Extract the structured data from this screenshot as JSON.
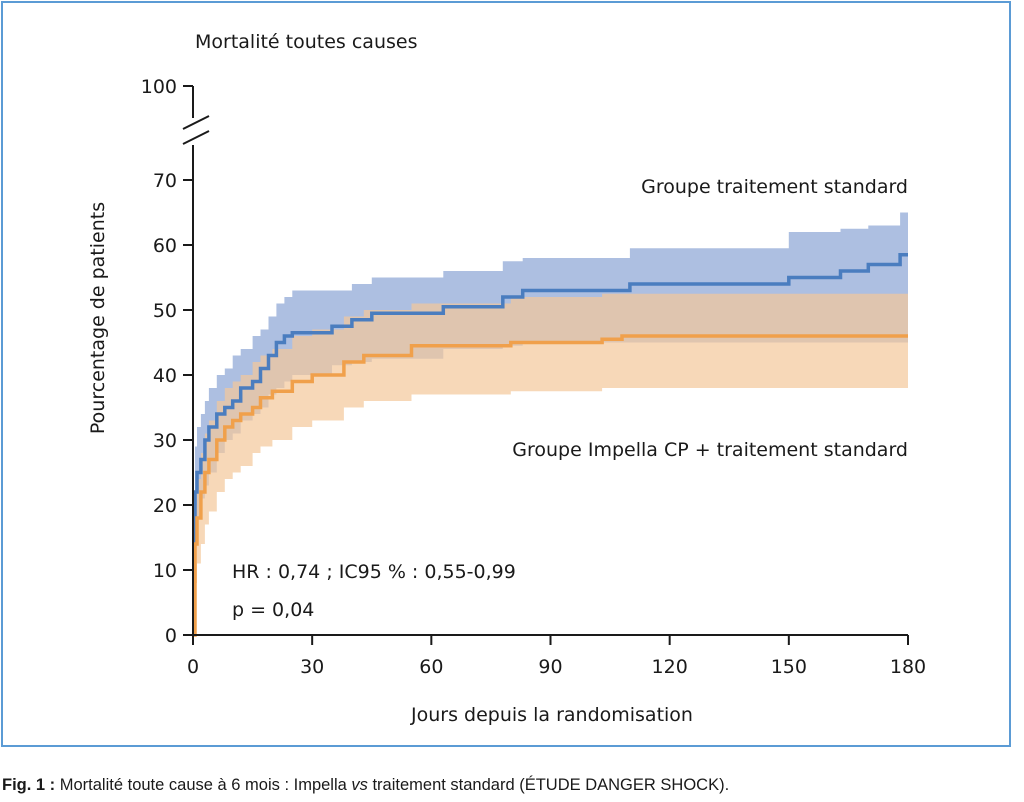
{
  "chart_data": {
    "type": "line",
    "subtype": "kaplan-meier step curves with confidence bands",
    "title": "Mortalité toutes causes",
    "xlabel": "Jours depuis la randomisation",
    "ylabel": "Pourcentage de patients",
    "xlim": [
      0,
      180
    ],
    "ylim": [
      0,
      70
    ],
    "y_break": {
      "from": 70,
      "to": 100
    },
    "x_ticks": [
      0,
      30,
      60,
      90,
      120,
      150,
      180
    ],
    "y_ticks": [
      0,
      10,
      20,
      30,
      40,
      50,
      60,
      70,
      100
    ],
    "x_tick_labels": [
      "0",
      "30",
      "60",
      "90",
      "120",
      "150",
      "180"
    ],
    "y_tick_labels": [
      "0",
      "10",
      "20",
      "30",
      "40",
      "50",
      "60",
      "70",
      "100"
    ],
    "grid": false,
    "series": [
      {
        "name": "Groupe traitement standard",
        "color": "#4a7dbf",
        "band_color": "#9fb4dc",
        "x": [
          0,
          0.5,
          1,
          2,
          3,
          4,
          6,
          8,
          10,
          12,
          15,
          17,
          19,
          21,
          23,
          25,
          35,
          40,
          45,
          63,
          78,
          83,
          110,
          150,
          163,
          170,
          178,
          180
        ],
        "y": [
          14,
          22,
          25,
          27,
          30,
          32,
          34,
          35,
          36,
          38,
          39,
          41,
          43,
          45,
          46,
          46.5,
          47.5,
          48.5,
          49.5,
          50.5,
          52,
          53,
          54,
          55,
          56,
          57,
          58.5,
          58.5
        ],
        "lower": [
          0,
          14,
          18,
          21,
          23,
          25,
          28,
          30,
          31,
          33,
          34,
          35,
          37,
          38,
          39,
          40,
          41.5,
          42,
          42.5,
          44,
          44.5,
          45,
          45,
          45,
          45,
          45,
          45,
          45
        ],
        "upper": [
          22,
          29,
          32,
          34,
          36,
          38,
          40,
          41,
          43,
          44,
          46,
          47,
          49,
          51,
          52,
          53,
          53,
          54,
          55,
          56,
          57.5,
          58,
          59.5,
          62,
          62.5,
          63,
          65,
          65
        ]
      },
      {
        "name": "Groupe Impella CP + traitement standard",
        "color": "#f0a04b",
        "band_color": "#f3c89a",
        "x": [
          0,
          0.5,
          1,
          2,
          3,
          4,
          6,
          8,
          10,
          12,
          15,
          17,
          20,
          25,
          30,
          38,
          43,
          55,
          80,
          103,
          108,
          180
        ],
        "y": [
          0,
          14,
          18,
          22,
          25,
          27,
          30,
          32,
          33,
          34,
          35,
          36.5,
          37.5,
          39,
          40,
          42,
          43,
          44.5,
          45,
          45.5,
          46,
          46
        ],
        "lower": [
          0,
          8,
          11,
          14,
          17,
          19,
          22,
          24,
          25,
          26,
          28,
          29,
          30,
          32,
          33,
          35,
          36,
          37,
          37.5,
          38,
          38,
          38
        ],
        "upper": [
          14,
          20,
          24,
          28,
          31,
          33,
          36,
          38,
          39,
          40,
          42,
          43,
          44,
          46,
          47,
          49,
          50,
          51,
          52,
          52.5,
          52.5,
          52.5
        ]
      }
    ],
    "annotations": [
      "HR : 0,74 ; IC95 % : 0,55-0,99",
      "p = 0,04"
    ],
    "legend": "inline labels next to curves (standard above, Impella below)"
  },
  "figure": {
    "caption_label": "Fig. 1 :",
    "caption_text": " Mortalité toute cause à 6 mois : Impella ",
    "caption_italic": "vs",
    "caption_tail": " traitement standard (ÉTUDE DANGER SHOCK)."
  },
  "colors": {
    "frame_border": "#5b9bd5",
    "axis": "#1a1a1a",
    "overlap_band": "#d0ae93"
  }
}
